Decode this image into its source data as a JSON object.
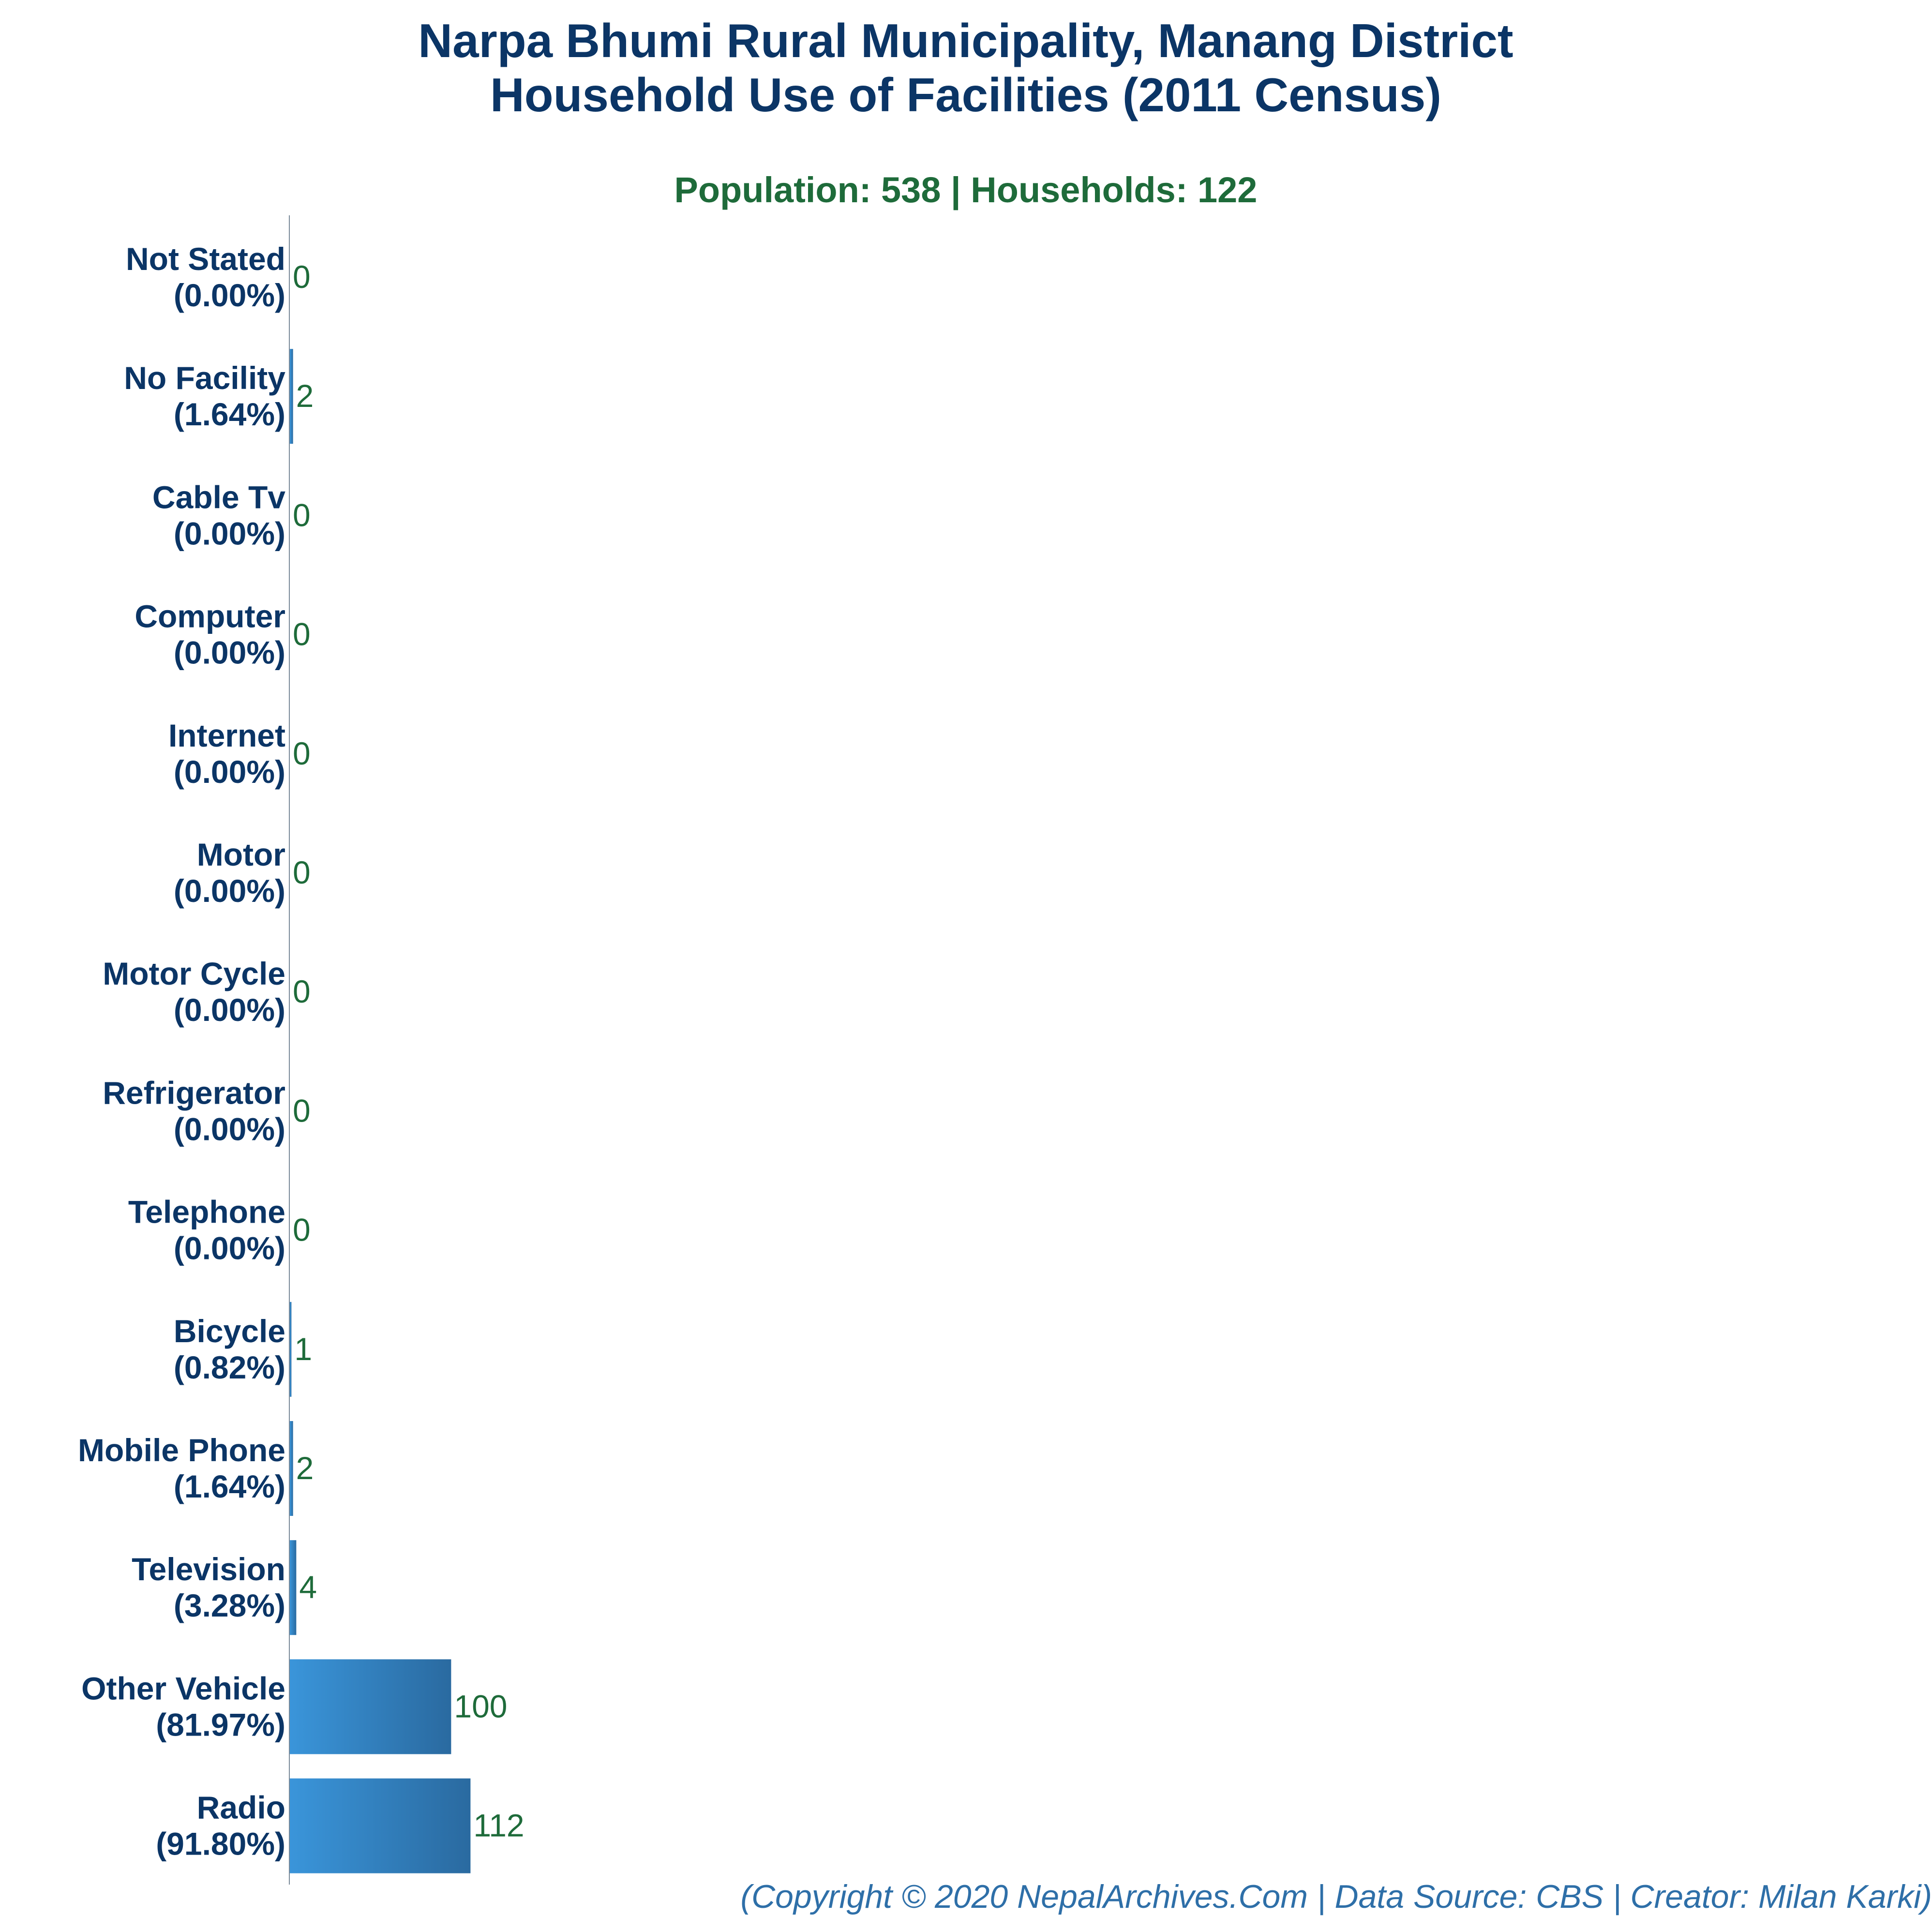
{
  "chart_data": {
    "type": "bar",
    "orientation": "horizontal",
    "title_line1": "Narpa Bhumi Rural Municipality, Manang District",
    "title_line2": "Household Use of Facilities (2011 Census)",
    "subtitle": "Population: 538 | Households: 122",
    "categories": [
      "Not Stated",
      "No Facility",
      "Cable Tv",
      "Computer",
      "Internet",
      "Motor",
      "Motor Cycle",
      "Refrigerator",
      "Telephone",
      "Bicycle",
      "Mobile Phone",
      "Television",
      "Other Vehicle",
      "Radio"
    ],
    "percent_labels": [
      "(0.00%)",
      "(1.64%)",
      "(0.00%)",
      "(0.00%)",
      "(0.00%)",
      "(0.00%)",
      "(0.00%)",
      "(0.00%)",
      "(0.00%)",
      "(0.82%)",
      "(1.64%)",
      "(3.28%)",
      "(81.97%)",
      "(91.80%)"
    ],
    "values": [
      0,
      2,
      0,
      0,
      0,
      0,
      0,
      0,
      0,
      1,
      2,
      4,
      100,
      112
    ],
    "xlim": [
      0,
      1000
    ],
    "colors": {
      "bar_start": "#3a95da",
      "bar_end": "#2a6aa0",
      "title": "#0b3566",
      "subtitle": "#1e6b3a",
      "value_label": "#1e6b3a",
      "footer": "#2e6fa8",
      "axis": "#7a8a99"
    }
  },
  "footer": "(Copyright © 2020 NepalArchives.Com | Data Source: CBS | Creator: Milan Karki)"
}
